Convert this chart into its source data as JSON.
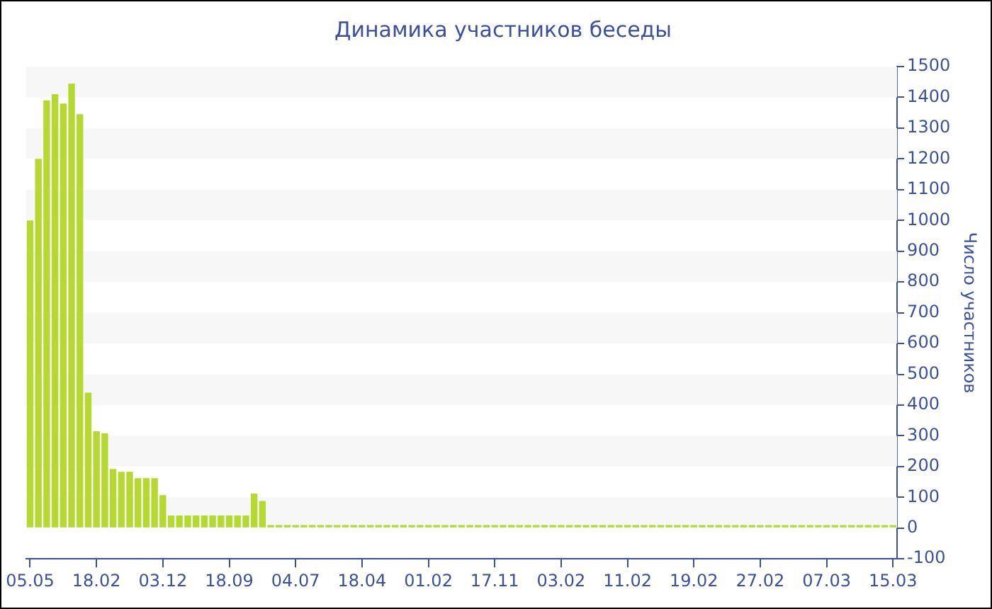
{
  "chart_data": {
    "type": "bar",
    "title": "Динамика участников беседы",
    "ylabel": "Число участников",
    "categories": [
      "05.05",
      null,
      null,
      null,
      null,
      null,
      null,
      null,
      "18.02",
      null,
      null,
      null,
      null,
      null,
      null,
      null,
      "03.12",
      null,
      null,
      null,
      null,
      null,
      null,
      null,
      "18.09",
      null,
      null,
      null,
      null,
      null,
      null,
      null,
      "04.07",
      null,
      null,
      null,
      null,
      null,
      null,
      null,
      "18.04",
      null,
      null,
      null,
      null,
      null,
      null,
      null,
      "01.02",
      null,
      null,
      null,
      null,
      null,
      null,
      null,
      "17.11",
      null,
      null,
      null,
      null,
      null,
      null,
      null,
      "03.02",
      null,
      null,
      null,
      null,
      null,
      null,
      null,
      "11.02",
      null,
      null,
      null,
      null,
      null,
      null,
      null,
      "19.02",
      null,
      null,
      null,
      null,
      null,
      null,
      null,
      "27.02",
      null,
      null,
      null,
      null,
      null,
      null,
      null,
      "07.03",
      null,
      null,
      null,
      null,
      null,
      null,
      null,
      "15.03"
    ],
    "values": [
      1000,
      1200,
      1390,
      1410,
      1380,
      1445,
      1345,
      440,
      315,
      308,
      192,
      183,
      183,
      162,
      162,
      162,
      107,
      41,
      41,
      41,
      41,
      41,
      41,
      41,
      41,
      41,
      41,
      112,
      88,
      10,
      10,
      10,
      10,
      10,
      10,
      10,
      10,
      10,
      10,
      10,
      10,
      10,
      10,
      10,
      10,
      10,
      10,
      10,
      10,
      10,
      10,
      10,
      10,
      10,
      10,
      10,
      10,
      10,
      10,
      10,
      10,
      10,
      10,
      10,
      10,
      10,
      10,
      10,
      10,
      10,
      10,
      10,
      10,
      10,
      10,
      10,
      10,
      10,
      10,
      10,
      10,
      10,
      10,
      10,
      10,
      10,
      10,
      10,
      10,
      10,
      10,
      10,
      10,
      10,
      10,
      10,
      10,
      10,
      10,
      10,
      10,
      10,
      10,
      10,
      10
    ],
    "color": "#b5d930",
    "ylim": [
      -100,
      1500
    ],
    "yticks": [
      -100,
      0,
      100,
      200,
      300,
      400,
      500,
      600,
      700,
      800,
      900,
      1000,
      1100,
      1200,
      1300,
      1400,
      1500
    ]
  }
}
